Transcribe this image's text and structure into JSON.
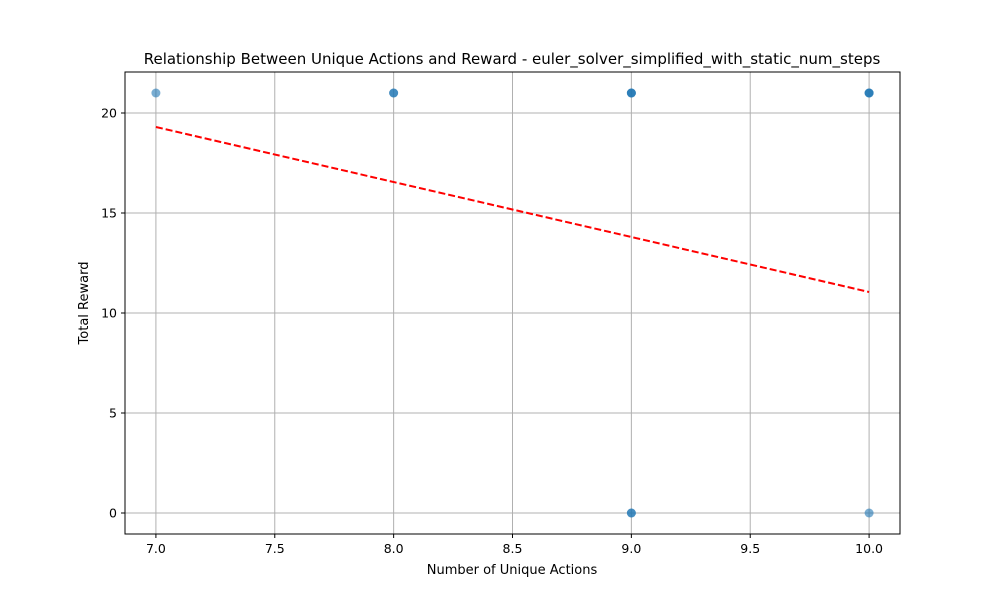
{
  "chart_data": {
    "type": "scatter",
    "title": "Relationship Between Unique Actions and Reward - euler_solver_simplified_with_static_num_steps",
    "xlabel": "Number of Unique Actions",
    "ylabel": "Total Reward",
    "xlim": [
      6.87,
      10.13
    ],
    "ylim": [
      -1.05,
      22.05
    ],
    "xticks": [
      "7.0",
      "7.5",
      "8.0",
      "8.5",
      "9.0",
      "9.5",
      "10.0"
    ],
    "yticks": [
      "0",
      "5",
      "10",
      "15",
      "20"
    ],
    "grid": true,
    "point_color": "#1f77b4",
    "trend_color": "#ff0000",
    "points": [
      {
        "x": 7,
        "y": 21
      },
      {
        "x": 8,
        "y": 21
      },
      {
        "x": 8,
        "y": 21
      },
      {
        "x": 9,
        "y": 21
      },
      {
        "x": 9,
        "y": 21
      },
      {
        "x": 9,
        "y": 21
      },
      {
        "x": 9,
        "y": 0
      },
      {
        "x": 9,
        "y": 0
      },
      {
        "x": 10,
        "y": 21
      },
      {
        "x": 10,
        "y": 21
      },
      {
        "x": 10,
        "y": 21
      },
      {
        "x": 10,
        "y": 0
      }
    ],
    "trendline": {
      "x": [
        7,
        10
      ],
      "y": [
        19.3,
        11.05
      ],
      "style": "dashed"
    }
  }
}
